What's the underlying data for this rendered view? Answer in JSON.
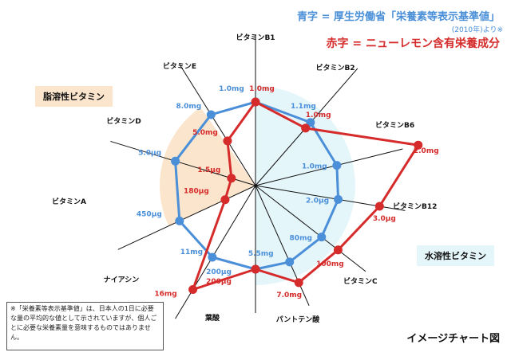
{
  "legend": {
    "blue_line": "青字 = 厚生労働省「栄養素等表示基準値」",
    "blue_year": "(2010年)より※",
    "red_line": "赤字 = ニューレモン含有栄養成分"
  },
  "groups": {
    "fat_soluble": "脂溶性ビタミン",
    "water_soluble": "水溶性ビタミン"
  },
  "note": "※「栄養素等表示基準値」は、日本人の1日に必要な量の平均的な値として示されていますが、個人ごとに必要な栄養素量を意味するものではありません。",
  "footer_title": "イメージチャート図",
  "colors": {
    "blue": "#4a8fd8",
    "red": "#d52b2b",
    "fat_region": "#fbe6cd",
    "water_region": "#e5f6fb"
  },
  "chart_data": {
    "type": "radar",
    "categories": [
      "ビタミンB1",
      "ビタミンB2",
      "ビタミンB6",
      "ビタミンB12",
      "ビタミンC",
      "パントテン酸",
      "葉酸",
      "ナイアシン",
      "ビタミンA",
      "ビタミンD",
      "ビタミンE"
    ],
    "series": [
      {
        "name": "青字 = 厚生労働省「栄養素等表示基準値」",
        "color": "#4a8fd8",
        "labels": [
          "1.0mg",
          "1.1mg",
          "1.0mg",
          "2.0μg",
          "80mg",
          "5.5mg",
          "200μg",
          "11mg",
          "450μg",
          "5.0μg",
          "8.0mg"
        ],
        "relative": [
          1,
          1,
          1,
          1,
          1,
          1,
          1,
          1,
          1,
          1,
          1
        ]
      },
      {
        "name": "赤字 = ニューレモン含有栄養成分",
        "color": "#d52b2b",
        "labels": [
          "1.0mg",
          "1.0mg",
          "2.0mg",
          "3.0μg",
          "100mg",
          "7.0mg",
          "200μg",
          "16mg",
          "180μg",
          "1.5μg",
          "5.0mg"
        ],
        "relative": [
          1.0,
          0.91,
          2.0,
          1.5,
          1.25,
          1.27,
          1.0,
          1.45,
          0.4,
          0.3,
          0.63
        ]
      }
    ]
  }
}
